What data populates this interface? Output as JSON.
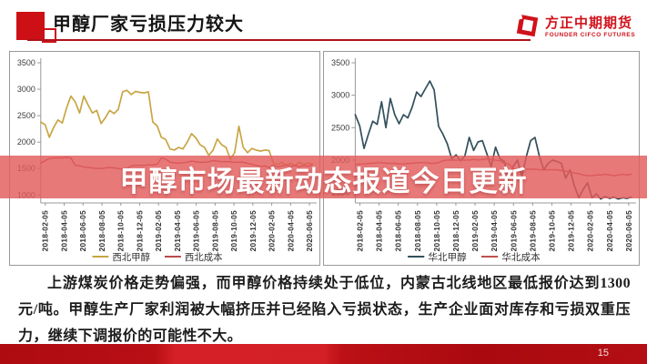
{
  "header": {
    "title": "甲醇厂家亏损压力较大",
    "logo_cn": "方正中期期货",
    "logo_en": "FOUNDER CIFCO FUTURES"
  },
  "watermark_text": "甲醇市场最新动态报道今日更新",
  "body_text": "上游煤炭价格走势偏强，而甲醇价格持续处于低位，内蒙古北线地区最低报价达到1300元/吨。甲醇生产厂家利润被大幅挤压并已经陷入亏损状态，生产企业面对库存和亏损双重压力，继续下调报价的可能性不大。",
  "footer": {
    "page_number": "15"
  },
  "colors": {
    "brand_red": "#c8161d",
    "banner_red": "rgba(226,92,92,0.82)",
    "northwest_methanol": "#c8a545",
    "northwest_cost": "#b94a48",
    "north_china_methanol": "#33515d",
    "north_china_cost": "#c0504d",
    "axis_gray": "#999999"
  },
  "chart_data": [
    {
      "type": "line",
      "title": "",
      "region": "西北",
      "x_labels": [
        "2018-02-05",
        "2018-04-05",
        "2018-06-05",
        "2018-08-05",
        "2018-10-05",
        "2018-12-05",
        "2019-02-05",
        "2019-04-05",
        "2019-06-05",
        "2019-08-05",
        "2019-10-05",
        "2019-12-05",
        "2020-02-05",
        "2020-04-05",
        "2020-06-05"
      ],
      "ylim": [
        850,
        3500
      ],
      "yticks": [
        1000,
        1500,
        2000,
        2500,
        3000,
        3500
      ],
      "grid": false,
      "legend_position": "bottom",
      "series": [
        {
          "name": "西北甲醇",
          "color": "#c8a545",
          "width": 1.7,
          "values": [
            2380,
            2330,
            2090,
            2280,
            2420,
            2360,
            2650,
            2870,
            2760,
            2550,
            2870,
            2700,
            2550,
            2600,
            2350,
            2460,
            2600,
            2540,
            2620,
            2950,
            2980,
            2900,
            2960,
            2940,
            2930,
            2950,
            2380,
            2310,
            2090,
            2050,
            1870,
            1850,
            1900,
            1870,
            2000,
            2160,
            2080,
            1950,
            1900,
            1750,
            1850,
            2060,
            1950,
            1900,
            1680,
            1800,
            2300,
            1900,
            1800,
            1880,
            1850,
            1830,
            1850,
            1840,
            1600,
            1580,
            1620,
            1560,
            1600,
            1550,
            1620,
            1580,
            1600,
            1590
          ]
        },
        {
          "name": "西北成本",
          "color": "#b94a48",
          "width": 1.4,
          "values": [
            1600,
            1650,
            1690,
            1700,
            1700,
            1700,
            1710,
            1700,
            1560,
            1550,
            1530,
            1520,
            1510,
            1500,
            1500,
            1510,
            1520,
            1510,
            1500,
            1490,
            1500,
            1550,
            1560,
            1560,
            1560,
            1570,
            1570,
            1580,
            1700,
            1680,
            1620,
            1610,
            1600,
            1610,
            1620,
            1640,
            1630,
            1620,
            1620,
            1630,
            1650,
            1640,
            1630,
            1630,
            1630,
            1620,
            1620,
            1620,
            1600,
            1580,
            1560,
            1540,
            1550,
            1520,
            1560,
            1530,
            1550,
            1570,
            1540,
            1560,
            1530,
            1560,
            1540,
            1570
          ]
        }
      ]
    },
    {
      "type": "line",
      "title": "",
      "region": "华北",
      "x_labels": [
        "2018-02-05",
        "2018-04-05",
        "2018-06-05",
        "2018-08-05",
        "2018-10-05",
        "2018-12-05",
        "2019-02-05",
        "2019-04-05",
        "2019-06-05",
        "2019-08-05",
        "2019-10-05",
        "2019-12-05",
        "2020-02-05",
        "2020-04-05",
        "2020-06-05"
      ],
      "ylim": [
        1340,
        3500
      ],
      "yticks": [
        1500,
        2000,
        2500,
        3000,
        3500
      ],
      "grid": false,
      "legend_position": "bottom",
      "series": [
        {
          "name": "华北甲醇",
          "color": "#33515d",
          "width": 1.7,
          "values": [
            2700,
            2530,
            2180,
            2400,
            2600,
            2550,
            2900,
            2500,
            2950,
            2700,
            2560,
            2700,
            2650,
            2820,
            3050,
            2980,
            3100,
            3220,
            3080,
            2520,
            2400,
            2250,
            2020,
            2080,
            1990,
            2060,
            2350,
            2150,
            2280,
            2300,
            2100,
            1900,
            2200,
            2020,
            1980,
            1700,
            1900,
            2000,
            1750,
            2050,
            2300,
            2350,
            2060,
            1850,
            1950,
            2000,
            1980,
            1950,
            1720,
            1850,
            1600,
            1420,
            1550,
            1650,
            1420,
            1480,
            1400,
            1440,
            1410,
            1430,
            1400,
            1420,
            1410,
            1430
          ]
        },
        {
          "name": "华北成本",
          "color": "#c0504d",
          "width": 1.4,
          "values": [
            1930,
            1940,
            1940,
            1950,
            1950,
            1960,
            1960,
            1950,
            1950,
            1950,
            1940,
            1940,
            1950,
            1950,
            1960,
            1960,
            1960,
            1950,
            1950,
            1960,
            1990,
            2000,
            2000,
            2000,
            2000,
            2000,
            2000,
            2010,
            2000,
            2010,
            2020,
            2010,
            2000,
            1990,
            1950,
            1940,
            1870,
            1860,
            1860,
            1860,
            1860,
            1860,
            1850,
            1850,
            1850,
            1850,
            1850,
            1840,
            1830,
            1820,
            1800,
            1790,
            1770,
            1760,
            1760,
            1770,
            1770,
            1780,
            1770,
            1760,
            1770,
            1780,
            1770,
            1780
          ]
        }
      ]
    }
  ]
}
